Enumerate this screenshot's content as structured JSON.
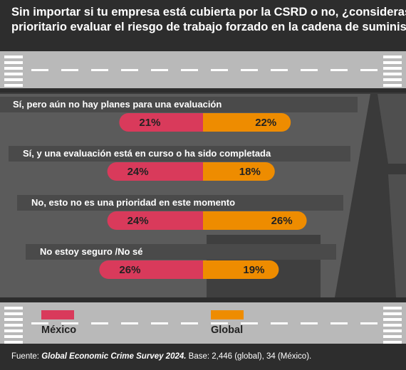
{
  "chart_data": {
    "type": "bar",
    "orientation": "horizontal-diverging",
    "title": "Sin importar si tu empresa está cubierta por la CSRD o no, ¿consideras prioritario evaluar el riesgo de trabajo forzado en la cadena de suministro?",
    "title_lines": [
      "Sin importar si tu empresa está cubierta por la CSRD o no, ¿consideras",
      "prioritario evaluar el riesgo de trabajo forzado en la cadena de suministro?"
    ],
    "categories": [
      "Sí, pero aún no hay planes para una evaluación",
      "Sí, y una evaluación está en curso o ha sido completada",
      "No, esto no es una prioridad en este momento",
      "No estoy seguro /No sé"
    ],
    "series": [
      {
        "name": "México",
        "values": [
          21,
          24,
          24,
          26
        ],
        "color": "#d93a5b"
      },
      {
        "name": "Global",
        "values": [
          22,
          18,
          26,
          19
        ],
        "color": "#ee8c00"
      }
    ],
    "value_suffix": "%",
    "legend_position": "bottom",
    "source": {
      "prefix": "Fuente: ",
      "emphasis": "Global Economic Crime Survey 2024.",
      "suffix": " Base: 2,446 (global), 34 (México)."
    }
  },
  "colors": {
    "background": "#2d2d2d",
    "road": "#b9b9b9",
    "road_dark": "#4a4a4a",
    "lane_mark": "#ffffff",
    "mexico": "#d93a5b",
    "global": "#ee8c00"
  }
}
